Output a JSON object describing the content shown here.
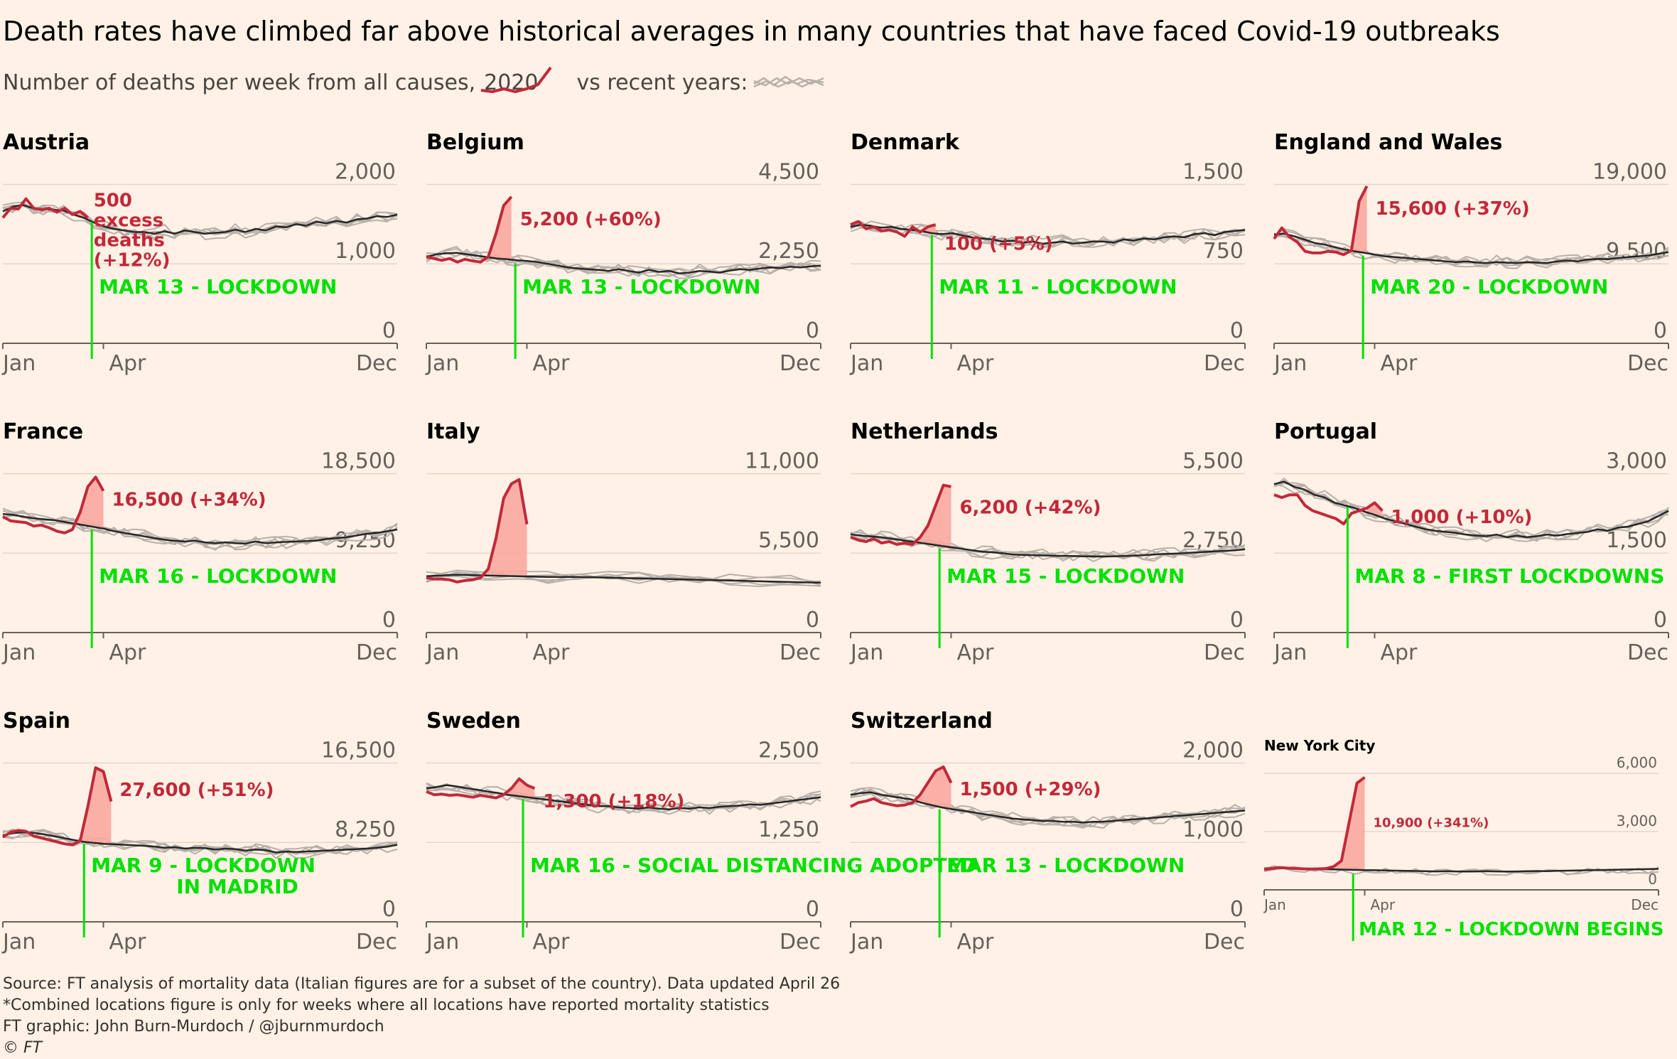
{
  "header": {
    "title": "Death rates have climbed far above historical averages in many countries that have faced Covid-19 outbreaks",
    "subtitle_prefix": "Number of deaths per week from all causes,",
    "subtitle_year": "2020",
    "subtitle_suffix": "vs recent years:"
  },
  "footer": {
    "source": "Source: FT analysis of mortality data (Italian figures are for a subset of the country). Data updated April 26",
    "note": "*Combined locations figure is only for weeks where all locations have reported mortality statistics",
    "credit": "FT graphic: John Burn-Murdoch / @jburnmurdoch",
    "copyright": "© FT"
  },
  "colors": {
    "background": "#FFF1E5",
    "line_2020": "#C2283A",
    "excess_fill": "#F9A99E",
    "baseline_avg": "#262626",
    "recent_years": "#B8B0AA",
    "event_marker": "#00E000",
    "gridline": "#E2D6CB"
  },
  "chart_data": [
    {
      "type": "line",
      "title": "Austria",
      "x_ticks": [
        "Jan",
        "Apr",
        "Dec"
      ],
      "y_ticks": [
        "0",
        "1,000",
        "2,000"
      ],
      "ylim": [
        0,
        2000
      ],
      "series": [
        {
          "name": "2020",
          "values": [
            1580,
            1700,
            1690,
            1820,
            1700,
            1680,
            1700,
            1650,
            1700,
            1620,
            1660,
            1580
          ]
        }
      ],
      "baseline": [
        1660,
        1720,
        1740,
        1700,
        1690,
        1680,
        1670,
        1620,
        1580,
        1520,
        1470,
        1440,
        1420,
        1400,
        1400,
        1380,
        1410,
        1380,
        1420,
        1400,
        1380,
        1390,
        1400,
        1430,
        1400,
        1440,
        1420,
        1470,
        1460,
        1500,
        1480,
        1530,
        1510,
        1540,
        1520,
        1560,
        1570,
        1600,
        1590,
        1620
      ],
      "event_week": 10,
      "event_label": [
        "MAR 13 - LOCKDOWN"
      ],
      "annotation": [
        "500",
        "excess",
        "deaths",
        "(+12%)"
      ]
    },
    {
      "type": "line",
      "title": "Belgium",
      "x_ticks": [
        "Jan",
        "Apr",
        "Dec"
      ],
      "y_ticks": [
        "0",
        "2,250",
        "4,500"
      ],
      "ylim": [
        0,
        4500
      ],
      "series": [
        {
          "name": "2020",
          "values": [
            2450,
            2400,
            2350,
            2400,
            2300,
            2380,
            2330,
            2300,
            2450,
            3100,
            3900,
            4150
          ]
        }
      ],
      "baseline": [
        2450,
        2520,
        2550,
        2560,
        2520,
        2480,
        2440,
        2400,
        2380,
        2350,
        2330,
        2300,
        2250,
        2200,
        2150,
        2120,
        2100,
        2080,
        2050,
        2100,
        2050,
        2000,
        2080,
        2020,
        2050,
        1980,
        2000,
        2050,
        2030,
        2000,
        2060,
        2100,
        2080,
        2120,
        2150,
        2130,
        2170,
        2150,
        2180,
        2200
      ],
      "event_week": 10,
      "event_label": [
        "MAR 13 - LOCKDOWN"
      ],
      "annotation": [
        "5,200 (+60%)"
      ]
    },
    {
      "type": "line",
      "title": "Denmark",
      "x_ticks": [
        "Jan",
        "Apr",
        "Dec"
      ],
      "y_ticks": [
        "0",
        "750",
        "1,500"
      ],
      "ylim": [
        0,
        1500
      ],
      "series": [
        {
          "name": "2020",
          "values": [
            1120,
            1150,
            1080,
            1100,
            1060,
            1070,
            1050,
            1010,
            1100,
            1050,
            1100,
            1120
          ]
        }
      ],
      "baseline": [
        1100,
        1120,
        1110,
        1090,
        1100,
        1080,
        1070,
        1060,
        1040,
        1030,
        1040,
        1020,
        1000,
        990,
        980,
        960,
        970,
        950,
        960,
        940,
        950,
        960,
        940,
        950,
        960,
        960,
        950,
        980,
        970,
        990,
        980,
        1000,
        1010,
        1000,
        1030,
        1040,
        1020,
        1050,
        1060,
        1070
      ],
      "event_week": 9,
      "event_label": [
        "MAR 11 - LOCKDOWN"
      ],
      "annotation": [
        "100 (+5%)"
      ]
    },
    {
      "type": "line",
      "title": "England and Wales",
      "x_ticks": [
        "Jan",
        "Apr",
        "Dec"
      ],
      "y_ticks": [
        "0",
        "9,500",
        "19,000"
      ],
      "ylim": [
        0,
        19000
      ],
      "series": [
        {
          "name": "2020",
          "values": [
            12500,
            13800,
            12700,
            12100,
            11000,
            10800,
            10800,
            11000,
            10900,
            10600,
            11100,
            17000,
            18800
          ]
        }
      ],
      "baseline": [
        13000,
        13100,
        12800,
        12400,
        12000,
        11800,
        11500,
        11200,
        11000,
        10800,
        10600,
        10400,
        10300,
        10200,
        10100,
        10000,
        9900,
        9800,
        9700,
        9800,
        9650,
        9600,
        9700,
        9650,
        9600,
        9700,
        9650,
        9600,
        9800,
        9900,
        9800,
        10000,
        10100,
        10050,
        10200,
        10300,
        10400,
        10500,
        10700,
        10900
      ],
      "event_week": 10,
      "event_label": [
        "MAR 20 - LOCKDOWN"
      ],
      "annotation": [
        "15,600 (+37%)"
      ]
    },
    {
      "type": "line",
      "title": "France",
      "x_ticks": [
        "Jan",
        "Apr",
        "Dec"
      ],
      "y_ticks": [
        "0",
        "9,250",
        "18,500"
      ],
      "ylim": [
        0,
        18500
      ],
      "series": [
        {
          "name": "2020",
          "values": [
            13500,
            13000,
            12900,
            12800,
            12400,
            12500,
            12200,
            11800,
            11600,
            12000,
            14000,
            17000,
            18100,
            16500
          ]
        }
      ],
      "baseline": [
        13800,
        13700,
        13500,
        13300,
        13200,
        13100,
        12900,
        12700,
        12500,
        12300,
        12100,
        11800,
        11600,
        11400,
        11200,
        11000,
        10800,
        10700,
        10600,
        10700,
        10500,
        10400,
        10500,
        10400,
        10350,
        10600,
        10400,
        10500,
        10550,
        10600,
        10650,
        10700,
        10900,
        11000,
        11100,
        11300,
        11500,
        11600,
        11800,
        12000
      ],
      "event_week": 10,
      "event_label": [
        "MAR 16 - LOCKDOWN"
      ],
      "annotation": [
        "16,500 (+34%)"
      ]
    },
    {
      "type": "line",
      "title": "Italy",
      "x_ticks": [
        "Jan",
        "Apr",
        "Dec"
      ],
      "y_ticks": [
        "0",
        "5,500",
        "11,000"
      ],
      "ylim": [
        0,
        11000
      ],
      "series": [
        {
          "name": "2020",
          "values": [
            3800,
            3700,
            3700,
            3650,
            3500,
            3600,
            3650,
            3800,
            4400,
            6500,
            9300,
            10300,
            10600,
            7500
          ]
        }
      ],
      "baseline": [
        3900,
        4000,
        3950,
        3900,
        3850,
        3850,
        3800,
        3750,
        3700,
        3650,
        3600,
        3550,
        3500,
        3450
      ]
    },
    {
      "type": "line",
      "title": "Netherlands",
      "x_ticks": [
        "Jan",
        "Apr",
        "Dec"
      ],
      "y_ticks": [
        "0",
        "2,750",
        "5,500"
      ],
      "ylim": [
        0,
        5500
      ],
      "series": [
        {
          "name": "2020",
          "values": [
            3300,
            3200,
            3150,
            3250,
            3100,
            3150,
            3050,
            3100,
            3050,
            3300,
            3700,
            4400,
            5100,
            5050
          ]
        }
      ],
      "baseline": [
        3400,
        3350,
        3330,
        3300,
        3250,
        3200,
        3150,
        3100,
        3050,
        3000,
        2950,
        2900,
        2850,
        2800,
        2780,
        2750,
        2700,
        2690,
        2680,
        2670,
        2660,
        2650,
        2650,
        2640,
        2640,
        2630,
        2640,
        2650,
        2660,
        2680,
        2700,
        2720,
        2730,
        2750,
        2770,
        2790,
        2810,
        2830,
        2850,
        2880
      ],
      "event_week": 10,
      "event_label": [
        "MAR 15 - LOCKDOWN"
      ],
      "annotation": [
        "6,200 (+42%)"
      ]
    },
    {
      "type": "line",
      "title": "Portugal",
      "x_ticks": [
        "Jan",
        "Apr",
        "Dec"
      ],
      "y_ticks": [
        "0",
        "1,500",
        "3,000"
      ],
      "ylim": [
        0,
        3000
      ],
      "series": [
        {
          "name": "2020",
          "values": [
            2600,
            2550,
            2600,
            2600,
            2400,
            2300,
            2250,
            2200,
            2150,
            2050,
            2250,
            2300,
            2350,
            2450,
            2300
          ]
        }
      ],
      "baseline": [
        2800,
        2850,
        2750,
        2700,
        2600,
        2550,
        2450,
        2400,
        2350,
        2280,
        2220,
        2150,
        2100,
        2050,
        2000,
        1950,
        1920,
        1900,
        1880,
        1850,
        1830,
        1820,
        1850,
        1800,
        1830,
        1800,
        1820,
        1850,
        1830,
        1860,
        1880,
        1900,
        1950,
        1920,
        1980,
        2000,
        2050,
        2100,
        2200,
        2300
      ],
      "event_week": 8,
      "event_label": [
        "MAR 8 - FIRST LOCKDOWNS"
      ],
      "annotation": [
        "1,000 (+10%)"
      ]
    },
    {
      "type": "line",
      "title": "Spain",
      "x_ticks": [
        "Jan",
        "Apr",
        "Dec"
      ],
      "y_ticks": [
        "0",
        "8,250",
        "16,500"
      ],
      "ylim": [
        0,
        16500
      ],
      "series": [
        {
          "name": "2020",
          "values": [
            8800,
            9300,
            9500,
            9400,
            8900,
            8700,
            8500,
            8300,
            8100,
            8000,
            8400,
            12000,
            16000,
            15600,
            12500
          ]
        }
      ],
      "baseline": [
        9000,
        9200,
        9300,
        9250,
        9100,
        8900,
        8700,
        8500,
        8300,
        8200,
        8100,
        8050,
        8000,
        7950,
        7900,
        7800,
        7700,
        7750,
        7600,
        7700,
        7650,
        7500,
        7600,
        7550,
        7400,
        7500,
        7450,
        7200,
        7300,
        7250,
        7300,
        7350,
        7400,
        7450,
        7500,
        7550,
        7600,
        7700,
        7800,
        8000
      ],
      "event_week": 9,
      "event_label": [
        "MAR 9 - LOCKDOWN",
        "IN MADRID"
      ],
      "annotation": [
        "27,600 (+51%)"
      ]
    },
    {
      "type": "line",
      "title": "Sweden",
      "x_ticks": [
        "Jan",
        "Apr",
        "Dec"
      ],
      "y_ticks": [
        "0",
        "1,250",
        "2,500"
      ],
      "ylim": [
        0,
        2500
      ],
      "series": [
        {
          "name": "2020",
          "values": [
            2050,
            2000,
            2010,
            1990,
            2000,
            1980,
            1960,
            1990,
            1970,
            1950,
            2000,
            2100,
            2250,
            2150,
            2100
          ]
        }
      ],
      "baseline": [
        2100,
        2120,
        2150,
        2130,
        2100,
        2080,
        2050,
        2030,
        2000,
        1980,
        1960,
        1940,
        1920,
        1900,
        1880,
        1860,
        1840,
        1820,
        1820,
        1800,
        1790,
        1780,
        1800,
        1780,
        1770,
        1790,
        1780,
        1800,
        1790,
        1810,
        1820,
        1830,
        1850,
        1840,
        1860,
        1880,
        1900,
        1920,
        1940,
        1960
      ],
      "event_week": 11,
      "event_label": [
        "MAR 16 - SOCIAL DISTANCING ADOPTED"
      ],
      "annotation": [
        "1,300 (+18%)"
      ]
    },
    {
      "type": "line",
      "title": "Switzerland",
      "x_ticks": [
        "Jan",
        "Apr",
        "Dec"
      ],
      "y_ticks": [
        "0",
        "1,000",
        "2,000"
      ],
      "ylim": [
        0,
        2000
      ],
      "series": [
        {
          "name": "2020",
          "values": [
            1450,
            1500,
            1520,
            1550,
            1500,
            1480,
            1460,
            1470,
            1500,
            1600,
            1750,
            1900,
            1950,
            1750
          ]
        }
      ],
      "baseline": [
        1600,
        1620,
        1630,
        1600,
        1580,
        1560,
        1540,
        1500,
        1470,
        1440,
        1420,
        1400,
        1380,
        1360,
        1340,
        1320,
        1300,
        1290,
        1280,
        1270,
        1270,
        1260,
        1260,
        1250,
        1260,
        1260,
        1270,
        1280,
        1290,
        1300,
        1310,
        1320,
        1330,
        1340,
        1350,
        1360,
        1370,
        1380,
        1390,
        1400
      ],
      "event_week": 10,
      "event_label": [
        "MAR 13 - LOCKDOWN"
      ],
      "annotation": [
        "1,500 (+29%)"
      ]
    },
    {
      "type": "line",
      "title": "New York City",
      "x_ticks": [
        "Jan",
        "Apr",
        "Dec"
      ],
      "y_ticks": [
        "0",
        "3,000",
        "6,000"
      ],
      "ylim": [
        0,
        6000
      ],
      "series": [
        {
          "name": "2020",
          "values": [
            1050,
            1100,
            1150,
            1120,
            1100,
            1080,
            1070,
            1080,
            1100,
            1200,
            1500,
            3500,
            5500,
            5800
          ]
        }
      ],
      "baseline": [
        1100,
        1120,
        1110,
        1090,
        1080,
        1070,
        1060,
        1050,
        1040,
        1030,
        1020,
        1010,
        1000,
        990,
        980,
        970,
        960,
        950,
        960,
        950,
        940,
        950,
        960,
        950,
        940,
        950,
        960,
        970,
        960,
        980,
        990,
        1000,
        1010,
        1020,
        1030,
        1040,
        1050,
        1060,
        1070,
        1080
      ],
      "event_week": 10,
      "event_label": [
        "MAR 12 - LOCKDOWN BEGINS"
      ],
      "annotation": [
        "10,900 (+341%)"
      ]
    }
  ]
}
